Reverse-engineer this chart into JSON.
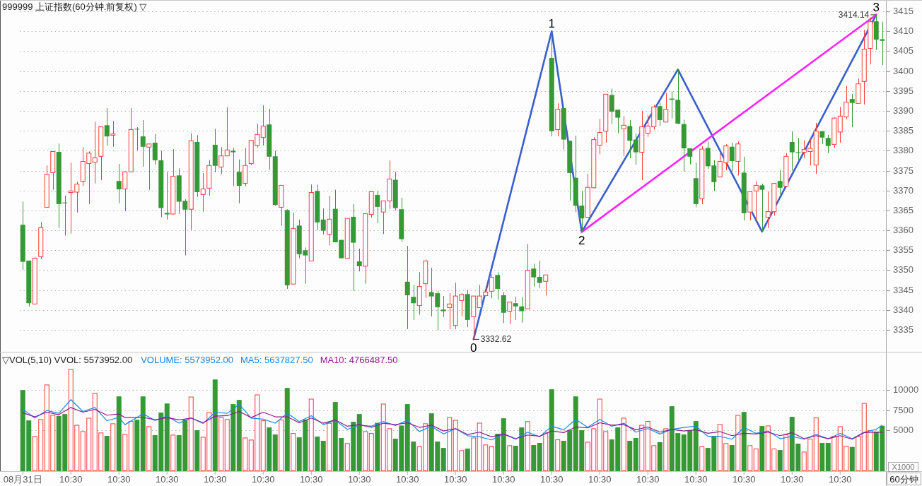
{
  "chart_data": [
    {
      "type": "candlestick",
      "title": "999999 上证指数(60分钟.前复权) ▽",
      "categories": [
        null,
        null,
        null,
        null,
        null,
        null,
        null,
        null,
        null,
        null,
        null,
        null,
        null,
        null,
        null,
        null,
        null,
        null,
        null,
        null,
        null,
        null,
        null,
        null,
        null,
        null,
        null,
        null,
        null,
        null,
        null,
        null,
        null,
        null,
        null,
        null,
        null,
        null,
        null,
        null,
        null,
        null,
        null,
        null,
        null,
        null,
        null,
        null,
        null,
        null,
        null,
        null,
        null,
        null,
        null,
        null,
        null,
        null,
        null,
        null,
        null,
        null,
        null,
        null,
        null,
        null,
        null,
        null,
        null,
        null,
        null,
        null,
        null,
        null,
        null,
        null,
        null,
        null,
        null,
        null,
        null,
        null,
        null,
        null,
        null,
        null,
        null,
        null,
        null,
        null,
        null,
        null,
        null,
        null,
        null,
        null,
        null,
        null,
        null,
        null,
        null,
        null,
        null,
        null,
        null,
        null,
        null,
        null,
        null,
        null,
        null,
        null,
        null,
        null,
        null,
        null,
        null,
        null,
        null,
        null,
        null,
        null,
        null,
        null,
        null,
        null,
        null,
        null,
        null,
        null,
        null,
        null,
        null,
        null,
        null,
        null,
        null,
        null,
        null,
        null,
        null,
        null,
        null,
        null
      ],
      "ohlc": [
        [
          3361.4,
          3367.2,
          3350.1,
          3352.1
        ],
        [
          3352.4,
          3352.4,
          3340.9,
          3341.7
        ],
        [
          3341.5,
          3353.3,
          3341.5,
          3353.0
        ],
        [
          3353.4,
          3362.0,
          3352.8,
          3360.7
        ],
        [
          3365.8,
          3376.3,
          3365.8,
          3374.1
        ],
        [
          3374.5,
          3379.8,
          3370.2,
          3379.8
        ],
        [
          3379.7,
          3381.8,
          3360.6,
          3366.6
        ],
        [
          3367.0,
          3368.7,
          3358.7,
          3366.9
        ],
        [
          3369.5,
          3377.0,
          3359.2,
          3369.9
        ],
        [
          3369.6,
          3372.2,
          3364.5,
          3371.6
        ],
        [
          3372.3,
          3380.9,
          3371.1,
          3377.3
        ],
        [
          3376.8,
          3379.8,
          3366.6,
          3379.4
        ],
        [
          3377.1,
          3387.3,
          3371.8,
          3378.2
        ],
        [
          3378.6,
          3386.0,
          3372.6,
          3386.0
        ],
        [
          3386.4,
          3390.7,
          3381.3,
          3383.6
        ],
        [
          3383.9,
          3387.5,
          3381.0,
          3384.2
        ],
        [
          3372.4,
          3376.7,
          3366.8,
          3370.3
        ],
        [
          3370.4,
          3374.7,
          3364.8,
          3374.7
        ],
        [
          3374.7,
          3390.7,
          3374.7,
          3385.3
        ],
        [
          3385.5,
          3385.9,
          3380.1,
          3385.4
        ],
        [
          3383.6,
          3387.7,
          3376.0,
          3381.0
        ],
        [
          3380.9,
          3381.7,
          3370.2,
          3381.7
        ],
        [
          3382.0,
          3384.2,
          3376.4,
          3377.6
        ],
        [
          3377.6,
          3380.0,
          3363.3,
          3365.6
        ],
        [
          3364.4,
          3374.7,
          3362.7,
          3364.0
        ],
        [
          3364.1,
          3380.4,
          3364.0,
          3373.6
        ],
        [
          3373.8,
          3375.6,
          3364.1,
          3367.2
        ],
        [
          3367.4,
          3367.8,
          3353.7,
          3365.2
        ],
        [
          3365.3,
          3384.4,
          3360.1,
          3382.5
        ],
        [
          3382.2,
          3383.9,
          3368.4,
          3369.6
        ],
        [
          3369.0,
          3374.4,
          3364.7,
          3370.4
        ],
        [
          3370.6,
          3377.7,
          3368.7,
          3376.3
        ],
        [
          3381.5,
          3385.5,
          3374.6,
          3376.2
        ],
        [
          3375.9,
          3380.9,
          3374.1,
          3378.7
        ],
        [
          3378.7,
          3390.9,
          3378.7,
          3380.2
        ],
        [
          3380.0,
          3380.7,
          3371.1,
          3379.6
        ],
        [
          3374.7,
          3377.8,
          3366.8,
          3371.2
        ],
        [
          3371.8,
          3380.7,
          3371.1,
          3376.3
        ],
        [
          3376.8,
          3382.6,
          3376.4,
          3382.6
        ],
        [
          3381.3,
          3386.8,
          3380.8,
          3384.1
        ],
        [
          3383.3,
          3391.4,
          3381.3,
          3386.2
        ],
        [
          3386.6,
          3390.5,
          3375.2,
          3378.5
        ],
        [
          3378.6,
          3380.0,
          3366.2,
          3366.4
        ],
        [
          3365.8,
          3371.3,
          3361.2,
          3371.3
        ],
        [
          3365.1,
          3365.3,
          3345.3,
          3346.2
        ],
        [
          3346.5,
          3364.4,
          3346.5,
          3360.5
        ],
        [
          3361.2,
          3362.7,
          3353.0,
          3354.0
        ],
        [
          3355.0,
          3355.7,
          3346.6,
          3353.7
        ],
        [
          3352.3,
          3371.5,
          3352.3,
          3369.5
        ],
        [
          3369.9,
          3371.5,
          3360.0,
          3362.0
        ],
        [
          3362.7,
          3365.5,
          3359.0,
          3359.9
        ],
        [
          3359.0,
          3368.7,
          3356.2,
          3362.8
        ],
        [
          3365.4,
          3370.2,
          3357.0,
          3357.0
        ],
        [
          3357.6,
          3357.6,
          3353.0,
          3353.0
        ],
        [
          3353.0,
          3363.0,
          3353.0,
          3363.0
        ],
        [
          3363.4,
          3366.6,
          3344.8,
          3356.9
        ],
        [
          3352.2,
          3355.4,
          3349.7,
          3351.0
        ],
        [
          3351.0,
          3364.2,
          3346.6,
          3364.2
        ],
        [
          3364.0,
          3369.7,
          3363.2,
          3369.7
        ],
        [
          3368.9,
          3369.9,
          3361.8,
          3365.9
        ],
        [
          3364.6,
          3367.4,
          3359.1,
          3367.4
        ],
        [
          3367.4,
          3377.5,
          3365.4,
          3372.9
        ],
        [
          3372.7,
          3374.7,
          3365.0,
          3365.6
        ],
        [
          3365.3,
          3368.2,
          3357.1,
          3357.8
        ],
        [
          3347.1,
          3356.1,
          3335.2,
          3343.7
        ],
        [
          3343.3,
          3346.3,
          3337.5,
          3341.7
        ],
        [
          3341.1,
          3349.5,
          3338.8,
          3345.9
        ],
        [
          3346.6,
          3352.7,
          3343.0,
          3352.3
        ],
        [
          3344.5,
          3350.6,
          3338.4,
          3343.4
        ],
        [
          3344.2,
          3344.8,
          3334.9,
          3340.7
        ],
        [
          3340.1,
          3343.5,
          3338.2,
          3339.7
        ],
        [
          3340.6,
          3344.2,
          3335.2,
          3341.5
        ],
        [
          3336.1,
          3346.9,
          3335.2,
          3343.5
        ],
        [
          3342.4,
          3344.2,
          3338.4,
          3343.9
        ],
        [
          3344.0,
          3345.1,
          3335.7,
          3337.5
        ],
        [
          3338.3,
          3343.5,
          3332.62,
          3343.5
        ],
        [
          3340.6,
          3346.3,
          3340.5,
          3343.5
        ],
        [
          3343.6,
          3346.0,
          3343.6,
          3344.5
        ],
        [
          3344.7,
          3348.9,
          3343.0,
          3348.2
        ],
        [
          3348.8,
          3349.5,
          3342.6,
          3345.3
        ],
        [
          3343.7,
          3344.5,
          3336.7,
          3339.3
        ],
        [
          3339.7,
          3342.0,
          3336.4,
          3342.0
        ],
        [
          3341.7,
          3343.3,
          3337.5,
          3340.9
        ],
        [
          3340.9,
          3343.2,
          3336.8,
          3339.7
        ],
        [
          3340.3,
          3356.6,
          3340.3,
          3350.0
        ],
        [
          3350.4,
          3351.6,
          3345.9,
          3348.2
        ],
        [
          3348.3,
          3352.4,
          3345.5,
          3346.8
        ],
        [
          3347.2,
          3348.8,
          3343.6,
          3348.8
        ],
        [
          3403.3,
          3410.0,
          3383.6,
          3384.9
        ],
        [
          3385.3,
          3391.9,
          3383.6,
          3390.4
        ],
        [
          3390.7,
          3390.7,
          3380.3,
          3382.8
        ],
        [
          3382.5,
          3382.5,
          3367.5,
          3374.4
        ],
        [
          3373.2,
          3383.8,
          3364.6,
          3366.2
        ],
        [
          3366.2,
          3369.9,
          3359.6,
          3363.0
        ],
        [
          3363.3,
          3374.2,
          3363.1,
          3370.8
        ],
        [
          3370.7,
          3383.4,
          3370.5,
          3382.8
        ],
        [
          3381.4,
          3388.0,
          3379.1,
          3384.6
        ],
        [
          3384.9,
          3394.2,
          3382.0,
          3394.2
        ],
        [
          3394.0,
          3395.6,
          3386.7,
          3389.8
        ],
        [
          3390.3,
          3390.3,
          3384.4,
          3388.3
        ],
        [
          3385.5,
          3388.7,
          3378.6,
          3386.4
        ],
        [
          3386.2,
          3387.7,
          3378.1,
          3382.5
        ],
        [
          3382.8,
          3384.3,
          3376.5,
          3379.6
        ],
        [
          3379.6,
          3390.0,
          3372.6,
          3386.0
        ],
        [
          3384.4,
          3389.0,
          3383.5,
          3386.2
        ],
        [
          3386.0,
          3391.5,
          3385.3,
          3391.0
        ],
        [
          3391.2,
          3392.1,
          3386.2,
          3387.7
        ],
        [
          3387.2,
          3394.5,
          3387.2,
          3390.4
        ],
        [
          3393.1,
          3394.9,
          3388.1,
          3392.8
        ],
        [
          3392.8,
          3400.4,
          3386.7,
          3386.8
        ],
        [
          3386.7,
          3387.8,
          3374.8,
          3380.6
        ],
        [
          3380.6,
          3380.6,
          3376.6,
          3378.5
        ],
        [
          3373.1,
          3377.0,
          3365.8,
          3366.6
        ],
        [
          3367.9,
          3381.1,
          3366.6,
          3380.4
        ],
        [
          3380.7,
          3382.3,
          3375.4,
          3376.1
        ],
        [
          3376.3,
          3377.6,
          3369.9,
          3372.1
        ],
        [
          3373.4,
          3379.3,
          3373.4,
          3377.3
        ],
        [
          3377.0,
          3381.6,
          3375.1,
          3381.2
        ],
        [
          3381.0,
          3382.0,
          3374.8,
          3377.4
        ],
        [
          3377.3,
          3382.3,
          3373.8,
          3381.7
        ],
        [
          3374.5,
          3378.5,
          3362.5,
          3364.3
        ],
        [
          3364.6,
          3369.7,
          3362.5,
          3369.7
        ],
        [
          3369.9,
          3372.3,
          3362.5,
          3371.3
        ],
        [
          3371.3,
          3371.7,
          3359.7,
          3370.2
        ],
        [
          3363.3,
          3369.8,
          3360.6,
          3364.7
        ],
        [
          3364.7,
          3371.8,
          3363.7,
          3371.8
        ],
        [
          3372.4,
          3375.2,
          3369.0,
          3370.7
        ],
        [
          3371.1,
          3379.4,
          3371.1,
          3378.6
        ],
        [
          3382.2,
          3384.9,
          3375.0,
          3379.6
        ],
        [
          3379.6,
          3383.2,
          3377.6,
          3379.4
        ],
        [
          3379.6,
          3382.6,
          3378.1,
          3380.3
        ],
        [
          3379.8,
          3383.0,
          3376.3,
          3380.6
        ],
        [
          3376.4,
          3387.0,
          3374.2,
          3384.9
        ],
        [
          3384.9,
          3384.9,
          3381.7,
          3383.3
        ],
        [
          3383.2,
          3384.0,
          3379.4,
          3381.2
        ],
        [
          3381.6,
          3388.4,
          3380.7,
          3388.2
        ],
        [
          3384.7,
          3391.0,
          3382.0,
          3388.7
        ],
        [
          3388.5,
          3396.2,
          3387.9,
          3392.2
        ],
        [
          3393.0,
          3394.3,
          3385.9,
          3392.0
        ],
        [
          3391.9,
          3398.1,
          3391.9,
          3396.8
        ],
        [
          3397.4,
          3410.4,
          3391.6,
          3405.5
        ],
        [
          3405.7,
          3413.5,
          3401.7,
          3412.4
        ],
        [
          3412.5,
          3414.14,
          3405.3,
          3407.9
        ],
        [
          3408.0,
          3412.4,
          3401.5,
          3407.6
        ]
      ],
      "colors": [
        "#359935",
        "#359935",
        "#ff3b3b",
        "#ff3b3b",
        "#ff3b3b",
        "#ff3b3b",
        "#359935",
        "#359935",
        "#ff3b3b",
        "#ff3b3b",
        "#ff3b3b",
        "#ff3b3b",
        "#ff3b3b",
        "#ff3b3b",
        "#359935",
        "#ff3b3b",
        "#359935",
        "#ff3b3b",
        "#ff3b3b",
        "#359935",
        "#359935",
        "#ff3b3b",
        "#359935",
        "#359935",
        "#359935",
        "#ff3b3b",
        "#359935",
        "#359935",
        "#ff3b3b",
        "#359935",
        "#ff3b3b",
        "#ff3b3b",
        "#359935",
        "#ff3b3b",
        "#ff3b3b",
        "#359935",
        "#359935",
        "#ff3b3b",
        "#ff3b3b",
        "#ff3b3b",
        "#ff3b3b",
        "#359935",
        "#359935",
        "#ff3b3b",
        "#359935",
        "#ff3b3b",
        "#359935",
        "#359935",
        "#ff3b3b",
        "#359935",
        "#359935",
        "#ff3b3b",
        "#359935",
        "#359935",
        "#ff3b3b",
        "#359935",
        "#359935",
        "#ff3b3b",
        "#ff3b3b",
        "#359935",
        "#ff3b3b",
        "#ff3b3b",
        "#359935",
        "#359935",
        "#359935",
        "#359935",
        "#ff3b3b",
        "#ff3b3b",
        "#359935",
        "#359935",
        "#359935",
        "#ff3b3b",
        "#ff3b3b",
        "#ff3b3b",
        "#359935",
        "#ff3b3b",
        "#ff3b3b",
        "#ff3b3b",
        "#ff3b3b",
        "#359935",
        "#359935",
        "#ff3b3b",
        "#359935",
        "#359935",
        "#ff3b3b",
        "#359935",
        "#359935",
        "#ff3b3b",
        "#359935",
        "#ff3b3b",
        "#359935",
        "#359935",
        "#359935",
        "#359935",
        "#ff3b3b",
        "#ff3b3b",
        "#ff3b3b",
        "#ff3b3b",
        "#359935",
        "#359935",
        "#ff3b3b",
        "#359935",
        "#359935",
        "#ff3b3b",
        "#ff3b3b",
        "#ff3b3b",
        "#359935",
        "#ff3b3b",
        "#359935",
        "#359935",
        "#359935",
        "#359935",
        "#359935",
        "#ff3b3b",
        "#359935",
        "#359935",
        "#ff3b3b",
        "#ff3b3b",
        "#359935",
        "#ff3b3b",
        "#359935",
        "#ff3b3b",
        "#ff3b3b",
        "#359935",
        "#ff3b3b",
        "#ff3b3b",
        "#359935",
        "#ff3b3b",
        "#359935",
        "#359935",
        "#ff3b3b",
        "#ff3b3b",
        "#ff3b3b",
        "#359935",
        "#359935",
        "#ff3b3b",
        "#ff3b3b",
        "#ff3b3b",
        "#359935",
        "#ff3b3b",
        "#ff3b3b",
        "#ff3b3b",
        "#359935",
        "#359935"
      ],
      "ylim": [
        3329.5,
        3417.5
      ],
      "yticks": [
        3335,
        3340,
        3345,
        3350,
        3355,
        3360,
        3365,
        3370,
        3375,
        3380,
        3385,
        3390,
        3395,
        3400,
        3405,
        3410,
        3415
      ],
      "grid": "y",
      "tick_labels": "y",
      "annotations": [
        "3332.62",
        "3414.14",
        "0",
        "1",
        "2",
        "3"
      ],
      "series": [
        {
          "type": "line",
          "color": "#3a5fcd",
          "values": [
            null,
            null,
            null,
            null,
            null,
            null,
            null,
            null,
            null,
            null,
            null,
            null,
            null,
            null,
            null,
            null,
            null,
            null,
            null,
            null,
            null,
            null,
            null,
            null,
            null,
            null,
            null,
            null,
            null,
            null,
            null,
            null,
            null,
            null,
            null,
            null,
            null,
            null,
            null,
            null,
            null,
            null,
            null,
            null,
            null,
            null,
            null,
            null,
            null,
            null,
            null,
            null,
            null,
            null,
            null,
            null,
            null,
            null,
            null,
            null,
            null,
            null,
            null,
            null,
            null,
            null,
            null,
            null,
            null,
            null,
            null,
            null,
            null,
            null,
            null,
            3332.62,
            null,
            null,
            null,
            null,
            null,
            null,
            null,
            null,
            null,
            null,
            null,
            null,
            3410,
            null,
            null,
            null,
            null,
            3359.6,
            null,
            null,
            null,
            null,
            null,
            null,
            null,
            null,
            null,
            null,
            null,
            null,
            null,
            null,
            null,
            3400.4,
            null,
            null,
            null,
            null,
            null,
            null,
            null,
            null,
            null,
            null,
            null,
            null,
            null,
            3359.7,
            null,
            null,
            null,
            null,
            null,
            null,
            null,
            null,
            null,
            null,
            null,
            null,
            null,
            null,
            null,
            null,
            null,
            null,
            3414.14,
            null
          ]
        },
        {
          "type": "line",
          "color": "#ff22ff",
          "values": [
            null,
            null,
            null,
            null,
            null,
            null,
            null,
            null,
            null,
            null,
            null,
            null,
            null,
            null,
            null,
            null,
            null,
            null,
            null,
            null,
            null,
            null,
            null,
            null,
            null,
            null,
            null,
            null,
            null,
            null,
            null,
            null,
            null,
            null,
            null,
            null,
            null,
            null,
            null,
            null,
            null,
            null,
            null,
            null,
            null,
            null,
            null,
            null,
            null,
            null,
            null,
            null,
            null,
            null,
            null,
            null,
            null,
            null,
            null,
            null,
            null,
            null,
            null,
            null,
            null,
            null,
            null,
            null,
            null,
            null,
            null,
            null,
            null,
            null,
            null,
            null,
            null,
            null,
            null,
            null,
            null,
            null,
            null,
            null,
            null,
            null,
            null,
            null,
            null,
            null,
            null,
            null,
            null,
            3359.6,
            null,
            null,
            null,
            null,
            null,
            null,
            null,
            null,
            null,
            null,
            null,
            null,
            null,
            null,
            null,
            null,
            null,
            null,
            null,
            null,
            null,
            null,
            null,
            null,
            null,
            null,
            null,
            null,
            null,
            null,
            null,
            null,
            null,
            null,
            null,
            null,
            null,
            null,
            null,
            null,
            null,
            null,
            null,
            null,
            null,
            null,
            null,
            null,
            3414.14,
            null
          ]
        }
      ]
    },
    {
      "type": "bar",
      "title": "▽VOL(5,10) VVOL: 5573952.00",
      "categories": [
        "08月31日",
        null,
        null,
        null,
        null,
        null,
        null,
        null,
        "10:30",
        null,
        null,
        null,
        null,
        null,
        null,
        null,
        "10:30",
        null,
        null,
        null,
        null,
        null,
        null,
        null,
        "10:30",
        null,
        null,
        null,
        null,
        null,
        null,
        null,
        "10:30",
        null,
        null,
        null,
        null,
        null,
        null,
        null,
        "10:30",
        null,
        null,
        null,
        null,
        null,
        null,
        null,
        "10:30",
        null,
        null,
        null,
        null,
        null,
        null,
        null,
        "10:30",
        null,
        null,
        null,
        null,
        null,
        null,
        null,
        "10:30",
        null,
        null,
        null,
        null,
        null,
        null,
        null,
        "10:30",
        null,
        null,
        null,
        null,
        null,
        null,
        null,
        "10:30",
        null,
        null,
        null,
        null,
        null,
        null,
        null,
        "10:30",
        null,
        null,
        null,
        null,
        null,
        null,
        null,
        "10:30",
        null,
        null,
        null,
        null,
        null,
        null,
        null,
        "10:30",
        null,
        null,
        null,
        null,
        null,
        null,
        null,
        "10:30",
        null,
        null,
        null,
        null,
        null,
        null,
        null,
        "10:30",
        null,
        null,
        null,
        null,
        null,
        null,
        null,
        "10:30",
        null,
        null,
        null,
        null,
        null,
        null,
        null,
        "10:30",
        null,
        null,
        null,
        null,
        null,
        null,
        null
      ],
      "series": [
        {
          "values": [
            9970,
            6240,
            4310,
            6390,
            10640,
            6910,
            6790,
            7020,
            12540,
            5690,
            4910,
            6560,
            9600,
            4740,
            4340,
            5870,
            9190,
            4570,
            6160,
            6330,
            9190,
            5520,
            4420,
            7200,
            8320,
            4480,
            4420,
            6330,
            9160,
            5030,
            4220,
            7250,
            11270,
            6650,
            6390,
            8240,
            8760,
            4130,
            3870,
            9420,
            6240,
            5380,
            4510,
            6330,
            10230,
            4680,
            4160,
            6330,
            8900,
            4250,
            3730,
            5930,
            8500,
            4080,
            3440,
            6070,
            7020,
            4910,
            4680,
            5950,
            8290,
            5260,
            3990,
            5610,
            8240,
            3640,
            3040,
            5870,
            7110,
            3640,
            2860,
            6650,
            6300,
            2570,
            2770,
            4130,
            5950,
            3270,
            3040,
            4600,
            6500,
            3180,
            3120,
            5380,
            6130,
            3210,
            3470,
            4740,
            10060,
            3900,
            3730,
            5030,
            9190,
            5030,
            3610,
            5260,
            8900,
            4910,
            3900,
            5380,
            6560,
            3730,
            4080,
            5690,
            6160,
            3180,
            3560,
            5260,
            7980,
            4680,
            4510,
            5000,
            6160,
            3040,
            2860,
            4250,
            5780,
            3440,
            3210,
            6910,
            7280,
            3180,
            2770,
            5550,
            5610,
            2770,
            2600,
            4510,
            6680,
            3380,
            2400,
            3990,
            6590,
            3470,
            3470,
            4340,
            5520,
            3120,
            2980,
            4340,
            8380,
            5030,
            4860,
            5574
          ],
          "colors": [
            "#359935",
            "#359935",
            "#ff3b3b",
            "#ff3b3b",
            "#ff3b3b",
            "#ff3b3b",
            "#359935",
            "#359935",
            "#ff3b3b",
            "#ff3b3b",
            "#ff3b3b",
            "#ff3b3b",
            "#ff3b3b",
            "#ff3b3b",
            "#359935",
            "#ff3b3b",
            "#359935",
            "#ff3b3b",
            "#ff3b3b",
            "#359935",
            "#359935",
            "#ff3b3b",
            "#359935",
            "#359935",
            "#359935",
            "#ff3b3b",
            "#359935",
            "#359935",
            "#ff3b3b",
            "#359935",
            "#ff3b3b",
            "#ff3b3b",
            "#359935",
            "#ff3b3b",
            "#ff3b3b",
            "#359935",
            "#359935",
            "#ff3b3b",
            "#ff3b3b",
            "#ff3b3b",
            "#ff3b3b",
            "#359935",
            "#359935",
            "#ff3b3b",
            "#359935",
            "#ff3b3b",
            "#359935",
            "#359935",
            "#ff3b3b",
            "#359935",
            "#359935",
            "#ff3b3b",
            "#359935",
            "#359935",
            "#ff3b3b",
            "#359935",
            "#359935",
            "#ff3b3b",
            "#ff3b3b",
            "#359935",
            "#ff3b3b",
            "#ff3b3b",
            "#359935",
            "#359935",
            "#359935",
            "#359935",
            "#ff3b3b",
            "#ff3b3b",
            "#359935",
            "#359935",
            "#359935",
            "#ff3b3b",
            "#ff3b3b",
            "#ff3b3b",
            "#359935",
            "#ff3b3b",
            "#ff3b3b",
            "#ff3b3b",
            "#ff3b3b",
            "#359935",
            "#359935",
            "#ff3b3b",
            "#359935",
            "#359935",
            "#ff3b3b",
            "#359935",
            "#359935",
            "#ff3b3b",
            "#359935",
            "#ff3b3b",
            "#359935",
            "#359935",
            "#359935",
            "#359935",
            "#ff3b3b",
            "#ff3b3b",
            "#ff3b3b",
            "#ff3b3b",
            "#359935",
            "#359935",
            "#ff3b3b",
            "#359935",
            "#359935",
            "#ff3b3b",
            "#ff3b3b",
            "#ff3b3b",
            "#359935",
            "#ff3b3b",
            "#359935",
            "#359935",
            "#359935",
            "#359935",
            "#359935",
            "#ff3b3b",
            "#359935",
            "#359935",
            "#ff3b3b",
            "#ff3b3b",
            "#359935",
            "#ff3b3b",
            "#359935",
            "#ff3b3b",
            "#ff3b3b",
            "#359935",
            "#ff3b3b",
            "#ff3b3b",
            "#359935",
            "#ff3b3b",
            "#359935",
            "#359935",
            "#ff3b3b",
            "#ff3b3b",
            "#ff3b3b",
            "#359935",
            "#359935",
            "#ff3b3b",
            "#ff3b3b",
            "#ff3b3b",
            "#359935",
            "#ff3b3b",
            "#ff3b3b",
            "#ff3b3b",
            "#359935",
            "#359935"
          ]
        },
        {
          "type": "line",
          "name": "MA5: 5637827.50",
          "color": "#1e88e5",
          "values": [
            7630,
            null,
            6530,
            null,
            7460,
            null,
            7110,
            null,
            8790,
            null,
            7340,
            null,
            7830,
            null,
            6190,
            null,
            6620,
            5720,
            null,
            null,
            7050,
            null,
            6240,
            null,
            6760,
            null,
            5900,
            null,
            6530,
            null,
            5870,
            null,
            7250,
            null,
            7110,
            null,
            8210,
            null,
            6530,
            null,
            6390,
            null,
            5900,
            null,
            7110,
            null,
            6100,
            null,
            6820,
            null,
            5720,
            null,
            6240,
            null,
            5140,
            null,
            5660,
            null,
            5520,
            null,
            6100,
            null,
            5610,
            null,
            6240,
            null,
            4860,
            null,
            5520,
            null,
            4570,
            null,
            5230,
            null,
            4360,
            null,
            4220,
            null,
            3840,
            null,
            4570,
            null,
            3930,
            null,
            4800,
            null,
            4220,
            null,
            5520,
            null,
            5090,
            null,
            6360,
            null,
            5380,
            null,
            6360,
            null,
            5520,
            null,
            5900,
            null,
            4800,
            null,
            5230,
            null,
            4570,
            null,
            5140,
            null,
            5380,
            null,
            5520,
            null,
            4280,
            null,
            4280,
            null,
            3930,
            null,
            5380,
            null,
            4650,
            null,
            4940,
            null,
            3990,
            null,
            4280,
            null,
            3930,
            null,
            4510,
            null,
            3990,
            null,
            4650,
            null,
            3990,
            null,
            4800,
            null,
            5140,
            5638
          ]
        },
        {
          "type": "line",
          "name": "MA10: 4766487.50",
          "color": "#8e1a8e",
          "values": [
            7170,
            null,
            6680,
            null,
            7250,
            null,
            6940,
            null,
            7830,
            null,
            7250,
            null,
            7600,
            null,
            6880,
            null,
            7020,
            6590,
            null,
            null,
            6620,
            null,
            6300,
            null,
            6590,
            null,
            6300,
            null,
            6530,
            null,
            5950,
            null,
            6760,
            null,
            6820,
            null,
            7340,
            null,
            6590,
            null,
            7250,
            null,
            6680,
            null,
            6680,
            null,
            5950,
            null,
            6530,
            null,
            5900,
            null,
            6300,
            null,
            5520,
            null,
            5720,
            null,
            5380,
            null,
            5900,
            null,
            5720,
            null,
            5950,
            null,
            5380,
            null,
            5660,
            null,
            4940,
            null,
            5230,
            null,
            4510,
            null,
            4800,
            null,
            4220,
            null,
            4570,
            null,
            3990,
            null,
            4450,
            null,
            4280,
            null,
            4940,
            null,
            4740,
            null,
            5430,
            null,
            5320,
            null,
            5950,
            null,
            5660,
            null,
            5720,
            null,
            5090,
            null,
            5430,
            null,
            4800,
            null,
            5140,
            null,
            4940,
            null,
            5090,
            null,
            4650,
            null,
            4860,
            null,
            4360,
            null,
            4650,
            null,
            4570,
            null,
            4800,
            null,
            4360,
            null,
            4740,
            null,
            3990,
            null,
            4360,
            null,
            3990,
            null,
            4360,
            null,
            3930,
            null,
            4740,
            null,
            4800,
            4766
          ]
        }
      ],
      "ylim": [
        0,
        14500
      ],
      "yticks": [
        5000,
        7500,
        10000
      ],
      "grid": "y",
      "legend": "top left",
      "annotations": [
        "VOLUME: 5573952.00",
        "X1000",
        "60分钟"
      ]
    }
  ]
}
